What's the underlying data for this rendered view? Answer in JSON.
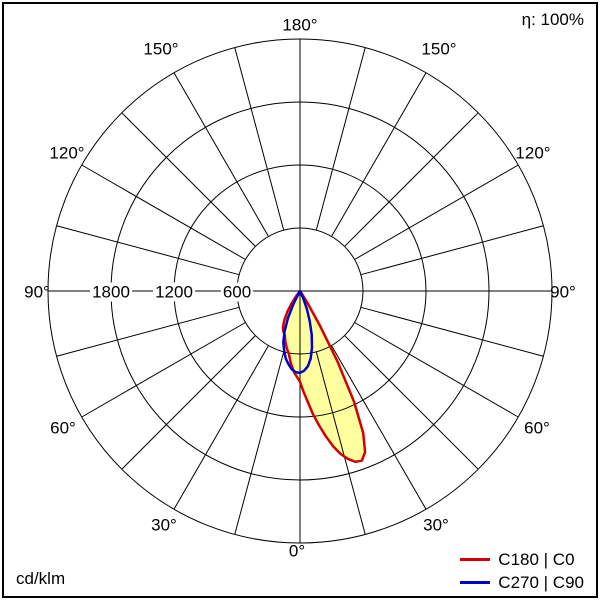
{
  "meta": {
    "efficiency_label": "η: 100%",
    "unit_label": "cd/klm"
  },
  "legend": [
    {
      "label": "C180 | C0",
      "color": "#d40000"
    },
    {
      "label": "C270 | C90",
      "color": "#0000cc"
    }
  ],
  "chart_data": {
    "type": "polar-photometric",
    "description": "Luminous intensity distribution curve (polar diagram), gamma angle 0° at bottom, intensity in cd/klm",
    "unit": "cd/klm",
    "efficiency": "100%",
    "r_max": 2400,
    "r_tick_step": 600,
    "r_ticks": [
      {
        "value": 1800,
        "label": "1800"
      },
      {
        "value": 1200,
        "label": "1200"
      },
      {
        "value": 600,
        "label": "600"
      }
    ],
    "angle_tick_step_deg": 15,
    "angle_label_step_deg": 30,
    "angle_ticks": [
      {
        "label": "180°",
        "position": "top"
      },
      {
        "label": "150°",
        "position": "top-left"
      },
      {
        "label": "150°",
        "position": "top-right"
      },
      {
        "label": "120°",
        "position": "left-upper"
      },
      {
        "label": "120°",
        "position": "right-upper"
      },
      {
        "label": "90°",
        "position": "left"
      },
      {
        "label": "90°",
        "position": "right"
      },
      {
        "label": "60°",
        "position": "left-lower"
      },
      {
        "label": "60°",
        "position": "right-lower"
      },
      {
        "label": "30°",
        "position": "bottom-left"
      },
      {
        "label": "30°",
        "position": "bottom-right"
      },
      {
        "label": "0°",
        "position": "bottom"
      }
    ],
    "series": [
      {
        "name": "C180 | C0",
        "color": "#d40000",
        "fill": "#ffffa0",
        "points_format": "[gamma_deg_from_down_positive_right, intensity_cd_per_klm]",
        "points": [
          [
            -40,
            0
          ],
          [
            -37,
            60
          ],
          [
            -34,
            150
          ],
          [
            -31,
            240
          ],
          [
            -28,
            320
          ],
          [
            -25,
            385
          ],
          [
            -22,
            420
          ],
          [
            -19,
            445
          ],
          [
            -16,
            505
          ],
          [
            -13,
            560
          ],
          [
            -10,
            610
          ],
          [
            -7,
            700
          ],
          [
            -4,
            780
          ],
          [
            -2,
            820
          ],
          [
            0,
            865
          ],
          [
            2,
            960
          ],
          [
            4,
            1060
          ],
          [
            6,
            1180
          ],
          [
            8,
            1290
          ],
          [
            10,
            1400
          ],
          [
            12,
            1510
          ],
          [
            14,
            1600
          ],
          [
            16,
            1665
          ],
          [
            18,
            1710
          ],
          [
            20,
            1720
          ],
          [
            22,
            1655
          ],
          [
            24,
            1480
          ],
          [
            26,
            1175
          ],
          [
            28,
            760
          ],
          [
            30,
            380
          ],
          [
            32,
            140
          ],
          [
            34,
            30
          ],
          [
            36,
            0
          ]
        ]
      },
      {
        "name": "C270 | C90",
        "color": "#0000cc",
        "fill": null,
        "points_format": "[gamma_deg_from_down_positive_right, intensity_cd_per_klm]",
        "points": [
          [
            -30,
            0
          ],
          [
            -27,
            130
          ],
          [
            -24,
            280
          ],
          [
            -21,
            410
          ],
          [
            -18,
            515
          ],
          [
            -15,
            585
          ],
          [
            -12,
            655
          ],
          [
            -9,
            705
          ],
          [
            -6,
            750
          ],
          [
            -3,
            775
          ],
          [
            0,
            780
          ],
          [
            3,
            760
          ],
          [
            6,
            720
          ],
          [
            9,
            650
          ],
          [
            12,
            550
          ],
          [
            15,
            430
          ],
          [
            18,
            300
          ],
          [
            21,
            180
          ],
          [
            24,
            70
          ],
          [
            27,
            0
          ]
        ]
      }
    ]
  }
}
